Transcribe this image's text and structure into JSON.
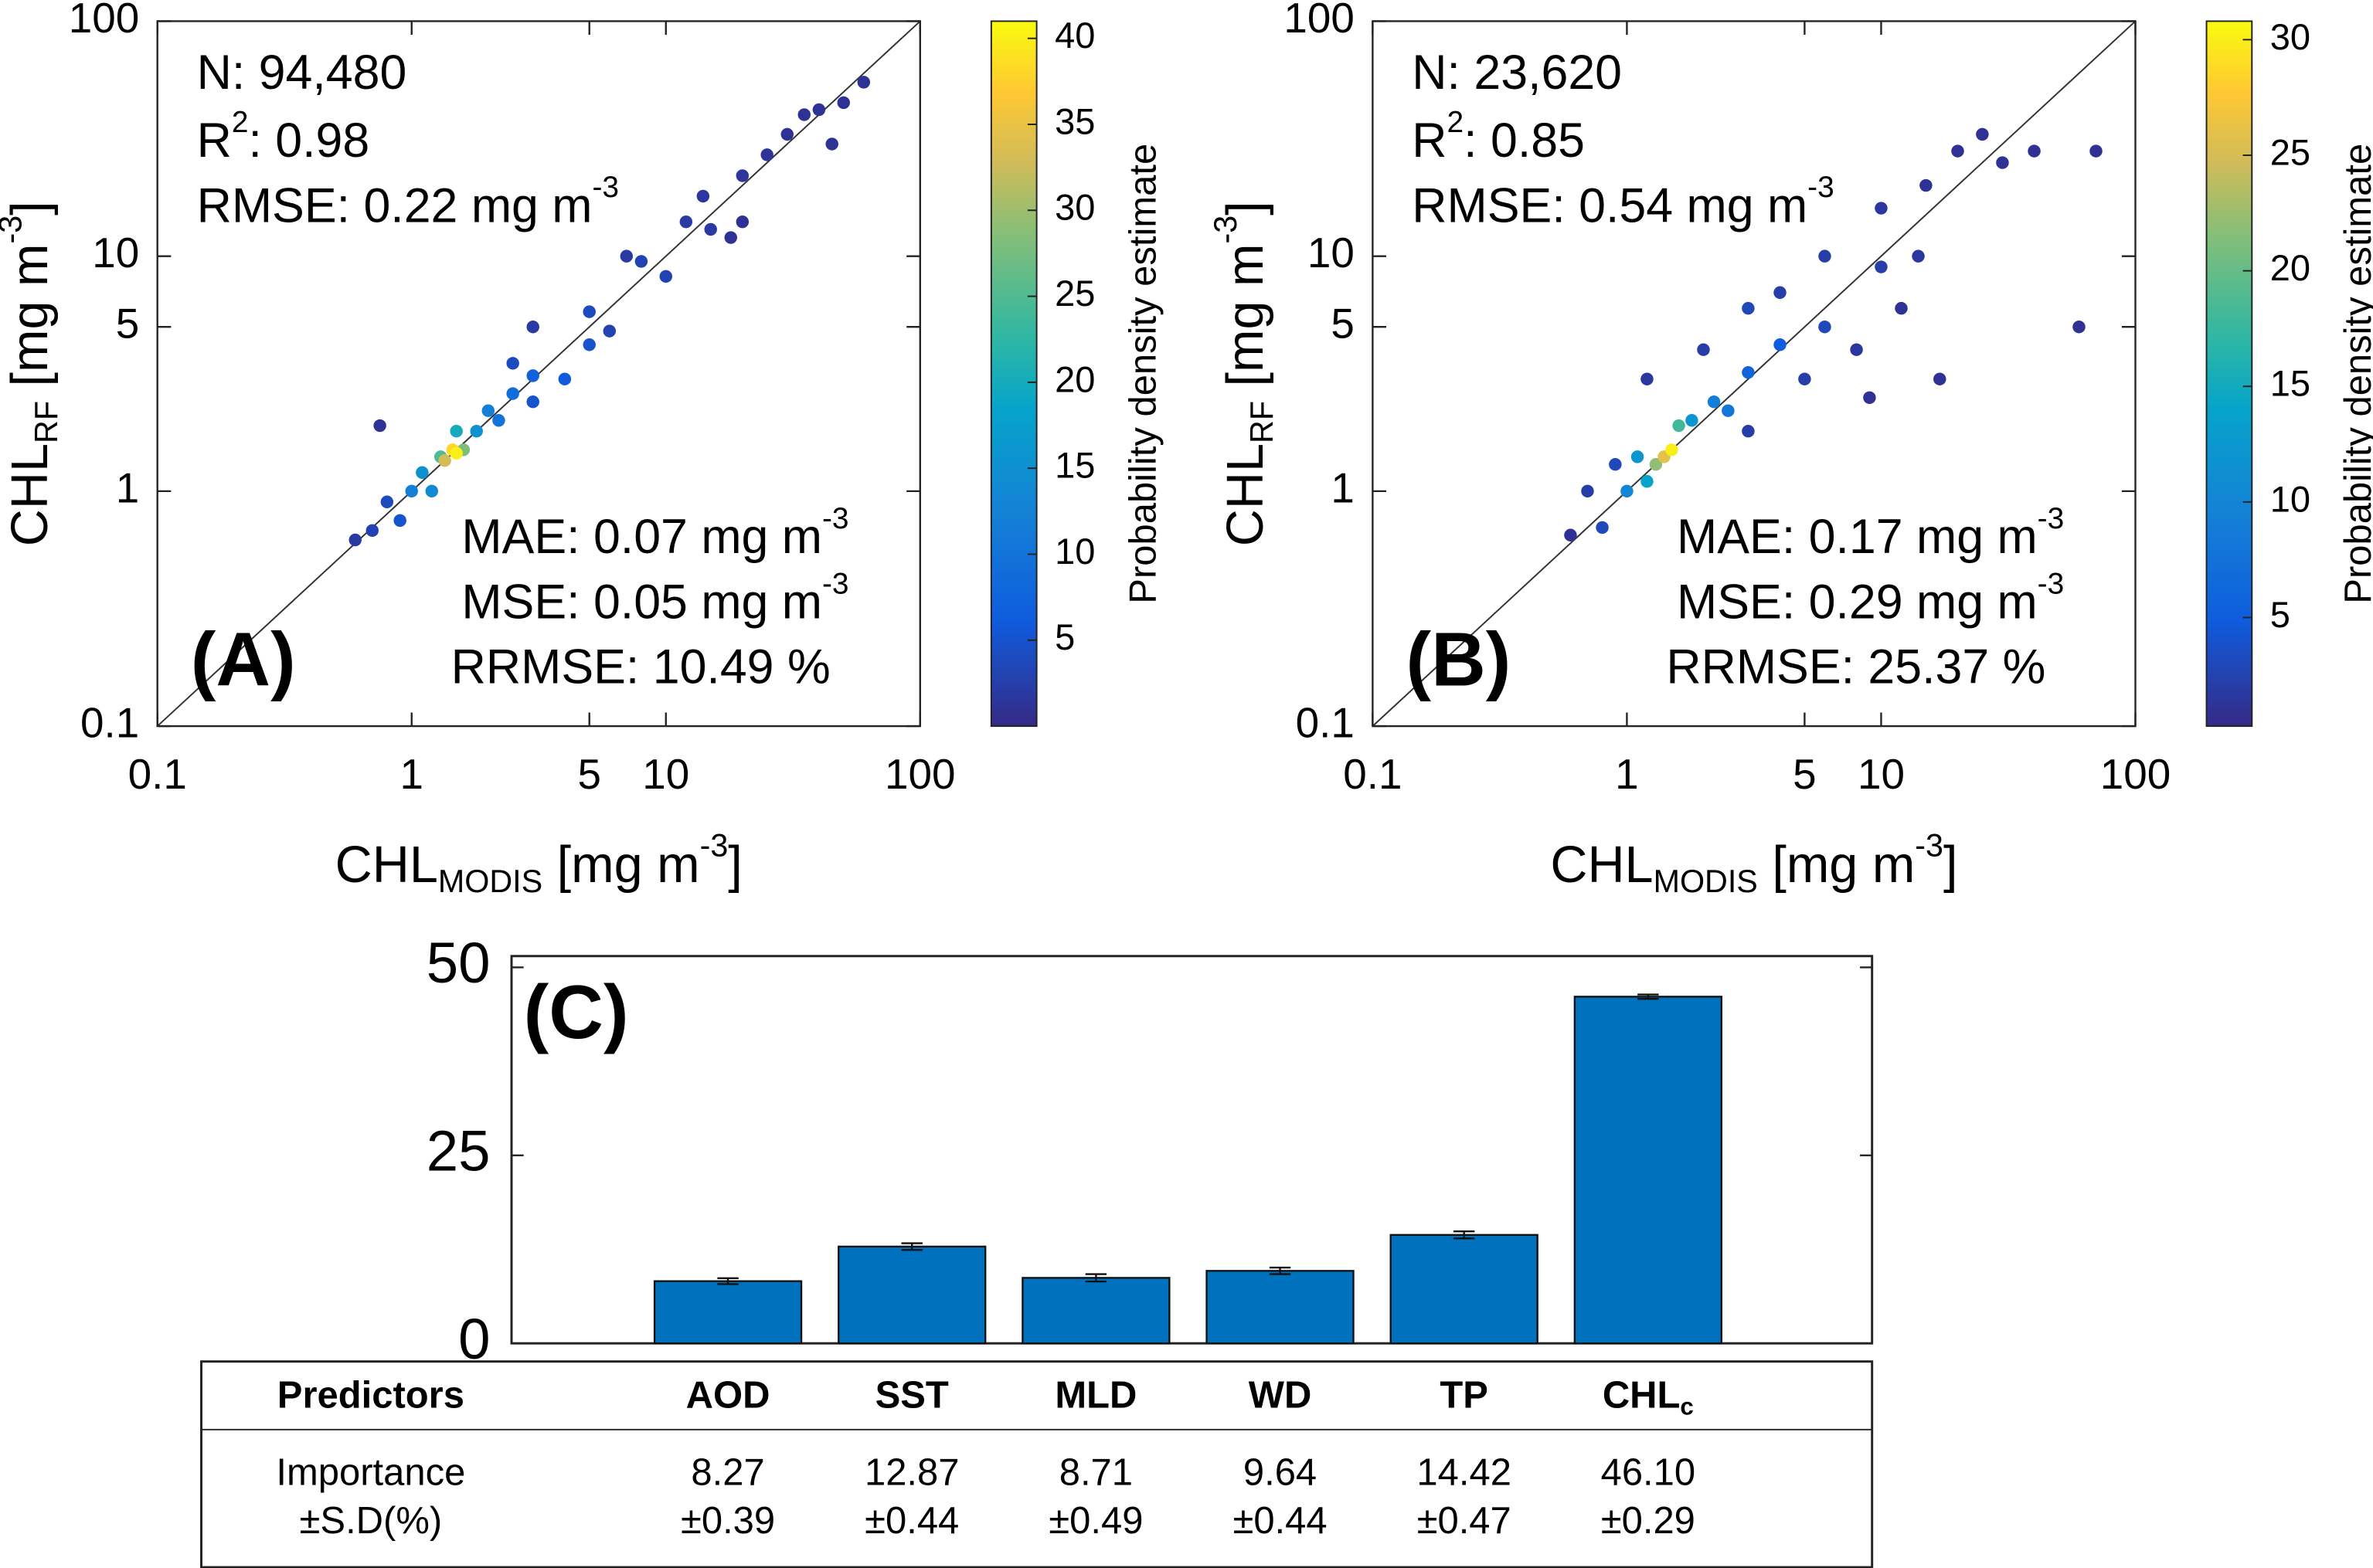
{
  "chart_data": [
    {
      "type": "scatter",
      "label": "(A)",
      "colormap": "parula",
      "log_x": true,
      "log_y": true,
      "identity_line": true,
      "xlim": [
        0.1,
        100
      ],
      "ylim": [
        0.1,
        100
      ],
      "xticks": [
        0.1,
        1,
        5,
        10,
        100
      ],
      "yticks": [
        0.1,
        1,
        5,
        10,
        100
      ],
      "xlabel": [
        {
          "t": "CHL"
        },
        {
          "sub": "MODIS"
        },
        {
          "t": " [mg m"
        },
        {
          "sup": "-3"
        },
        {
          "t": "]"
        }
      ],
      "ylabel": [
        {
          "t": "CHL"
        },
        {
          "sub": "RF"
        },
        {
          "t": " [mg m"
        },
        {
          "sup": "-3"
        },
        {
          "t": "]"
        }
      ],
      "annotations": [
        [
          {
            "t": "N: 94,480"
          }
        ],
        [
          {
            "t": "R"
          },
          {
            "sup": "2"
          },
          {
            "t": ": 0.98"
          }
        ],
        [
          {
            "t": "RMSE: 0.22 mg m"
          },
          {
            "sup": "-3"
          }
        ],
        [
          {
            "t": "MAE: 0.07 mg m"
          },
          {
            "sup": "-3"
          }
        ],
        [
          {
            "t": "MSE: 0.05 mg m"
          },
          {
            "sup": "-3"
          }
        ],
        [
          {
            "t": "RRMSE: 10.49 %"
          }
        ]
      ],
      "colorbar": {
        "label": "Probability density estimate",
        "clim": [
          0,
          41
        ],
        "ticks": [
          5,
          10,
          15,
          20,
          25,
          30,
          35,
          40
        ]
      },
      "x": [
        0.6,
        0.7,
        0.8,
        0.9,
        2.5,
        3,
        5,
        6,
        8,
        10,
        12,
        15,
        20,
        25,
        30,
        40,
        50,
        60,
        45,
        0.75,
        20,
        18,
        3,
        7,
        35,
        14,
        4,
        5,
        1.0,
        1.1,
        1.2,
        1.8,
        2,
        2.2,
        2.5,
        3,
        1.5,
        1.3,
        1.6,
        1.35,
        1.45,
        1.5
      ],
      "y": [
        0.62,
        0.68,
        0.9,
        0.75,
        3.5,
        2.4,
        5.8,
        4.8,
        9.5,
        8.2,
        14,
        13,
        22,
        27,
        33,
        42,
        45,
        55,
        30,
        1.9,
        14,
        12,
        5,
        10,
        40,
        18,
        3,
        4.2,
        1.0,
        1.2,
        1.0,
        1.8,
        2.2,
        2.0,
        2.6,
        3.1,
        1.8,
        1.4,
        1.5,
        1.35,
        1.5,
        1.45
      ],
      "density": [
        2,
        3,
        4,
        5,
        4,
        5,
        4,
        3,
        3,
        3,
        2,
        2,
        1.5,
        1.2,
        1,
        1,
        1,
        1,
        1,
        1,
        1,
        1,
        2,
        2,
        1,
        1.5,
        6,
        5,
        12,
        15,
        14,
        15,
        12,
        10,
        9,
        7,
        20,
        25,
        28,
        33,
        38,
        40
      ]
    },
    {
      "type": "scatter",
      "label": "(B)",
      "colormap": "parula",
      "log_x": true,
      "log_y": true,
      "identity_line": true,
      "xlim": [
        0.1,
        100
      ],
      "ylim": [
        0.1,
        100
      ],
      "xticks": [
        0.1,
        1,
        5,
        10,
        100
      ],
      "yticks": [
        0.1,
        1,
        5,
        10,
        100
      ],
      "xlabel": [
        {
          "t": "CHL"
        },
        {
          "sub": "MODIS"
        },
        {
          "t": " [mg m"
        },
        {
          "sup": "-3"
        },
        {
          "t": "]"
        }
      ],
      "ylabel": [
        {
          "t": "CHL"
        },
        {
          "sub": "RF"
        },
        {
          "t": " [mg m"
        },
        {
          "sup": "-3"
        },
        {
          "t": "]"
        }
      ],
      "annotations": [
        [
          {
            "t": "N: 23,620"
          }
        ],
        [
          {
            "t": "R"
          },
          {
            "sup": "2"
          },
          {
            "t": ": 0.85"
          }
        ],
        [
          {
            "t": "RMSE: 0.54 mg m"
          },
          {
            "sup": "-3"
          }
        ],
        [
          {
            "t": "MAE: 0.17 mg m"
          },
          {
            "sup": "-3"
          }
        ],
        [
          {
            "t": "MSE: 0.29 mg m"
          },
          {
            "sup": "-3"
          }
        ],
        [
          {
            "t": "RRMSE: 25.37 %"
          }
        ]
      ],
      "colorbar": {
        "label": "Probability density estimate",
        "clim": [
          0.3,
          30.8
        ],
        "ticks": [
          5,
          10,
          15,
          20,
          25,
          30
        ]
      },
      "x": [
        0.6,
        0.7,
        0.8,
        0.9,
        2,
        3,
        4,
        5,
        6,
        8,
        10,
        12,
        15,
        20,
        25,
        30,
        60,
        70,
        17,
        9,
        1.2,
        3,
        6,
        10,
        14,
        40,
        1,
        1.2,
        1.1,
        1.8,
        2.2,
        2.5,
        3,
        4,
        1.6,
        1.3,
        1.4,
        1.5
      ],
      "y": [
        0.65,
        1.0,
        0.7,
        1.3,
        4,
        1.8,
        7,
        3,
        10,
        4,
        16,
        6,
        20,
        28,
        33,
        25,
        5,
        28,
        3,
        2.5,
        3,
        6,
        5,
        9,
        10,
        28,
        1,
        1.1,
        1.4,
        2.0,
        2.4,
        2.2,
        3.2,
        4.2,
        1.9,
        1.3,
        1.4,
        1.5
      ],
      "density": [
        1,
        2,
        3,
        3,
        2,
        2,
        2,
        2,
        2,
        1.5,
        1.5,
        1,
        1,
        1,
        1,
        1,
        1,
        1,
        1,
        1,
        1.5,
        3,
        3,
        2,
        1.5,
        1,
        10,
        14,
        12,
        12,
        9,
        8,
        6,
        5,
        18,
        22,
        26,
        30
      ]
    },
    {
      "type": "bar",
      "label": "(C)",
      "color": "#0072bd",
      "categories": [
        "AOD",
        "SST",
        "MLD",
        "WD",
        "TP",
        {
          "t": "CHL",
          "sub": "c"
        }
      ],
      "values": [
        8.27,
        12.87,
        8.71,
        9.64,
        14.42,
        46.1
      ],
      "value_labels": [
        "8.27",
        "12.87",
        "8.71",
        "9.64",
        "14.42",
        "46.10"
      ],
      "errors": [
        0.39,
        0.44,
        0.49,
        0.44,
        0.47,
        0.29
      ],
      "error_labels": [
        "±0.39",
        "±0.44",
        "±0.49",
        "±0.44",
        "±0.47",
        "±0.29"
      ],
      "ylim": [
        0,
        51.5
      ],
      "yticks": [
        0,
        25,
        50
      ],
      "table_header": "Predictors",
      "row_label": [
        "Importance",
        "±S.D(%)"
      ]
    }
  ]
}
